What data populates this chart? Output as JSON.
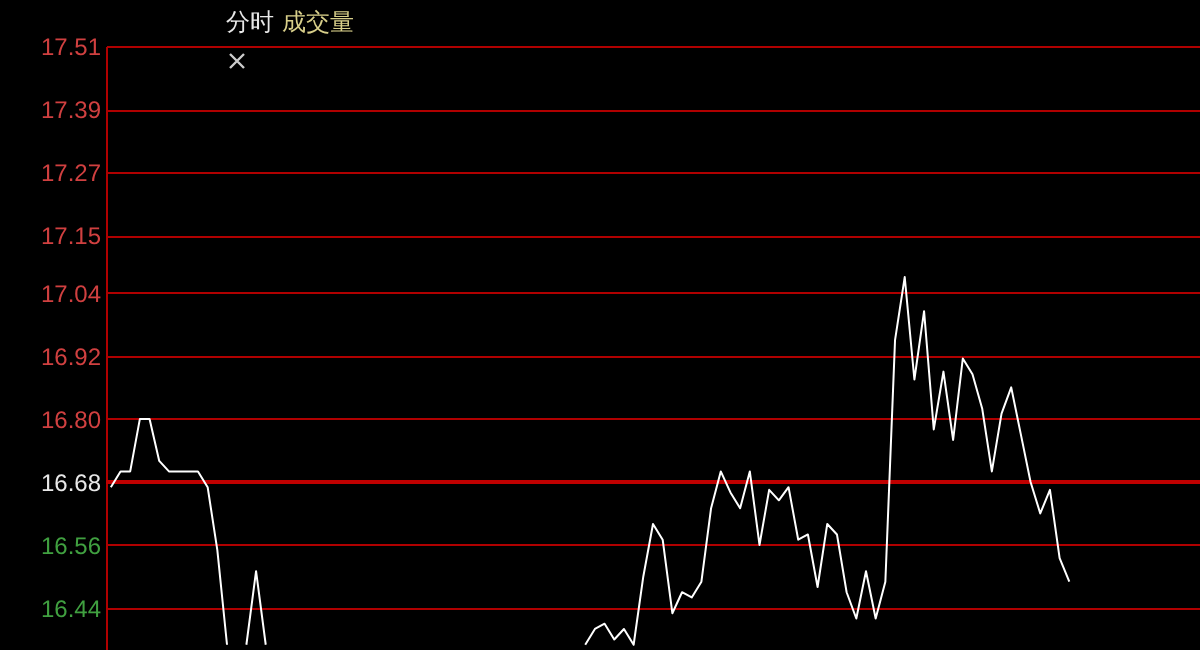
{
  "chart_data": {
    "type": "line",
    "title": "分时",
    "subtitle": "成交量",
    "categories": [
      null,
      null,
      null,
      null,
      null,
      null,
      null,
      null,
      null,
      null,
      null,
      null,
      null,
      null,
      null,
      null,
      null,
      null,
      null,
      null,
      null,
      null,
      null,
      null,
      null,
      null,
      null,
      null,
      null,
      null,
      null,
      null,
      null,
      null,
      null,
      null,
      null,
      null,
      null,
      null,
      null,
      null,
      null,
      null,
      null,
      null,
      null,
      null,
      null,
      null,
      null,
      null,
      null,
      null,
      null,
      null,
      null,
      null,
      null,
      null,
      null,
      null,
      null,
      null,
      null,
      null,
      null,
      null,
      null,
      null,
      null,
      null,
      null,
      null,
      null,
      null,
      null,
      null,
      null,
      null,
      null,
      null,
      null,
      null,
      null,
      null,
      null,
      null,
      null,
      null,
      null,
      null,
      null,
      null,
      null,
      null,
      null,
      null,
      null,
      null,
      null,
      null,
      null,
      null,
      null,
      null,
      null,
      null,
      null,
      null,
      null,
      null,
      null
    ],
    "ylim": [
      16.36,
      17.51
    ],
    "yticks": [
      16.44,
      16.56,
      16.68,
      {
        "value": 16.8,
        "label": "16.80"
      },
      16.92,
      17.04,
      17.15,
      17.27,
      17.39,
      17.51
    ],
    "tick_labels": "y",
    "grid": "y",
    "line_style": "solid",
    "ref_lines": [
      {
        "axis": "y",
        "value": 16.68,
        "color": "#c00000"
      }
    ],
    "series": [
      {
        "color": "#ffffff",
        "marker": "none",
        "values": [
          16.67,
          16.7,
          16.7,
          16.8,
          16.8,
          16.72,
          16.7,
          16.7,
          16.7,
          16.7,
          16.67,
          16.55,
          16.37,
          null,
          16.37,
          16.51,
          16.37,
          null,
          null,
          null,
          null,
          null,
          null,
          null,
          null,
          null,
          null,
          null,
          null,
          null,
          null,
          null,
          null,
          null,
          null,
          null,
          null,
          null,
          null,
          null,
          null,
          null,
          null,
          null,
          null,
          null,
          null,
          null,
          null,
          16.37,
          16.4,
          16.41,
          16.38,
          16.4,
          16.37,
          16.5,
          16.6,
          16.57,
          16.43,
          16.47,
          16.46,
          16.49,
          16.63,
          16.7,
          16.66,
          16.63,
          16.7,
          16.56,
          16.665,
          16.645,
          16.67,
          16.57,
          16.58,
          16.48,
          16.6,
          16.58,
          16.47,
          16.42,
          16.51,
          16.42,
          16.49,
          16.95,
          17.07,
          16.875,
          17.005,
          16.78,
          16.89,
          16.76,
          16.915,
          16.885,
          16.82,
          16.7,
          16.81,
          16.86,
          16.77,
          16.68,
          16.62,
          16.665,
          16.535,
          16.49,
          null,
          null,
          null,
          null,
          null,
          null,
          null,
          null,
          null,
          null,
          null,
          null,
          null
        ]
      }
    ]
  }
}
